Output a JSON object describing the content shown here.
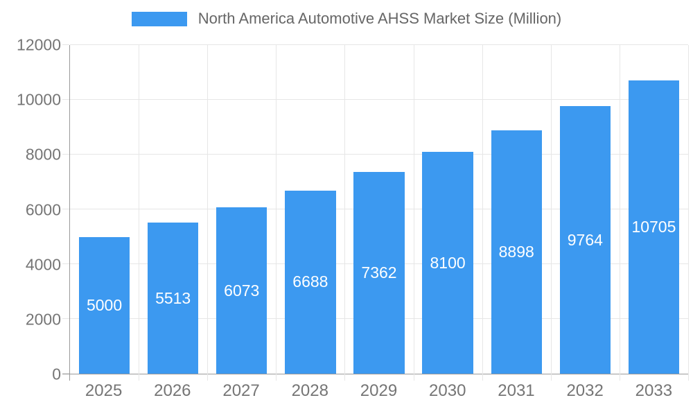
{
  "legend": {
    "label": "North America Automotive AHSS Market Size (Million)"
  },
  "chart_data": {
    "type": "bar",
    "title": "North America Automotive AHSS Market Size (Million)",
    "categories": [
      "2025",
      "2026",
      "2027",
      "2028",
      "2029",
      "2030",
      "2031",
      "2032",
      "2033"
    ],
    "values": [
      5000,
      5513,
      6073,
      6688,
      7362,
      8100,
      8898,
      9764,
      10705
    ],
    "bar_labels": [
      "5000",
      "5513",
      "6073",
      "6688",
      "7362",
      "8100",
      "8898",
      "9764",
      "10705"
    ],
    "xlabel": "",
    "ylabel": "",
    "ylim": [
      0,
      12000
    ],
    "yticks": [
      0,
      2000,
      4000,
      6000,
      8000,
      10000,
      12000
    ],
    "grid": true,
    "legend_position": "top",
    "bar_width_fraction": 0.74,
    "colors": {
      "bar": "#3C99F0",
      "bar_label": "#ffffff",
      "axis_label": "#757575",
      "legend_text": "#666666",
      "gridline": "#e6e6e6",
      "axis_line": "#999999",
      "background": "#ffffff"
    }
  }
}
